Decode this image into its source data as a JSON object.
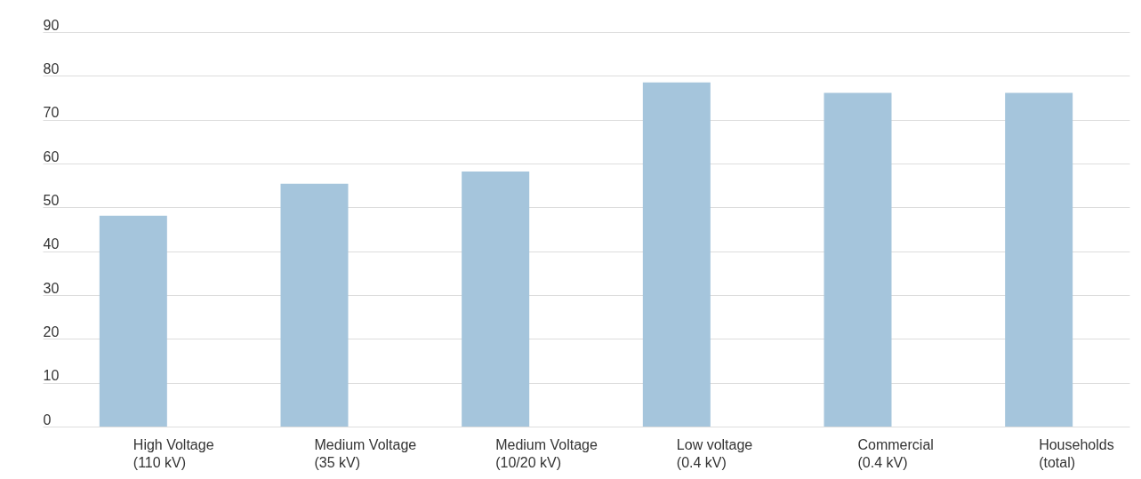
{
  "chart_data": {
    "type": "bar",
    "categories": [
      "High Voltage\n(110 kV)",
      "Medium Voltage\n(35 kV)",
      "Medium Voltage\n(10/20 kV)",
      "Low voltage\n(0.4 kV)",
      "Commercial\n(0.4 kV)",
      "Households\n(total)"
    ],
    "values": [
      48.1,
      55.4,
      58.2,
      78.5,
      76.1,
      76.1
    ],
    "color": "#a5c5dc",
    "ylim": [
      0,
      90
    ],
    "yticks": [
      0,
      10,
      20,
      30,
      40,
      50,
      60,
      70,
      80,
      90
    ],
    "grid": "y"
  }
}
